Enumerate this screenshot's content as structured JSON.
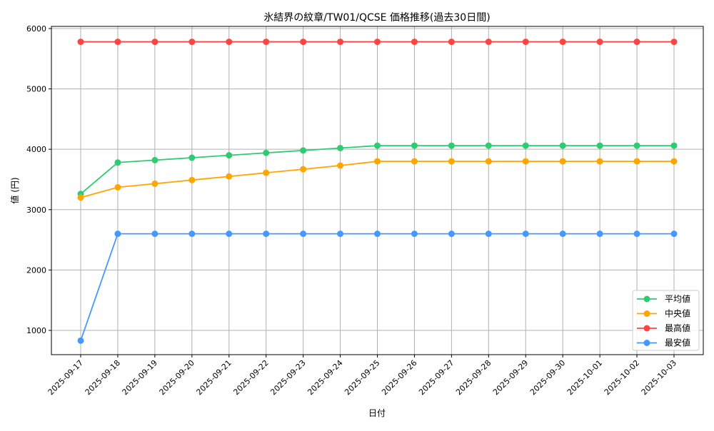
{
  "chart_data": {
    "type": "line",
    "title": "氷結界の紋章/TW01/QCSE 価格推移(過去30日間)",
    "xlabel": "日付",
    "ylabel": "値 (円)",
    "ylim": [
      598,
      6035
    ],
    "yticks": [
      1000,
      2000,
      3000,
      4000,
      5000,
      6000
    ],
    "grid": true,
    "legend_position": "bottom-right",
    "categories": [
      "2025-09-17",
      "2025-09-18",
      "2025-09-19",
      "2025-09-20",
      "2025-09-21",
      "2025-09-22",
      "2025-09-23",
      "2025-09-24",
      "2025-09-25",
      "2025-09-26",
      "2025-09-27",
      "2025-09-28",
      "2025-09-29",
      "2025-09-30",
      "2025-10-01",
      "2025-10-02",
      "2025-10-03"
    ],
    "series": [
      {
        "name": "平均値",
        "color": "#2ecc71",
        "values": [
          3260,
          3780,
          3820,
          3860,
          3900,
          3940,
          3980,
          4020,
          4060,
          4060,
          4060,
          4060,
          4060,
          4060,
          4060,
          4060,
          4060
        ]
      },
      {
        "name": "中央値",
        "color": "#ffa500",
        "values": [
          3200,
          3370,
          3430,
          3490,
          3550,
          3610,
          3670,
          3730,
          3800,
          3800,
          3800,
          3800,
          3800,
          3800,
          3800,
          3800,
          3800
        ]
      },
      {
        "name": "最高値",
        "color": "#ff4444",
        "values": [
          5780,
          5780,
          5780,
          5780,
          5780,
          5780,
          5780,
          5780,
          5780,
          5780,
          5780,
          5780,
          5780,
          5780,
          5780,
          5780,
          5780
        ]
      },
      {
        "name": "最安値",
        "color": "#4499ff",
        "values": [
          830,
          2600,
          2600,
          2600,
          2600,
          2600,
          2600,
          2600,
          2600,
          2600,
          2600,
          2600,
          2600,
          2600,
          2600,
          2600,
          2600
        ]
      }
    ]
  }
}
